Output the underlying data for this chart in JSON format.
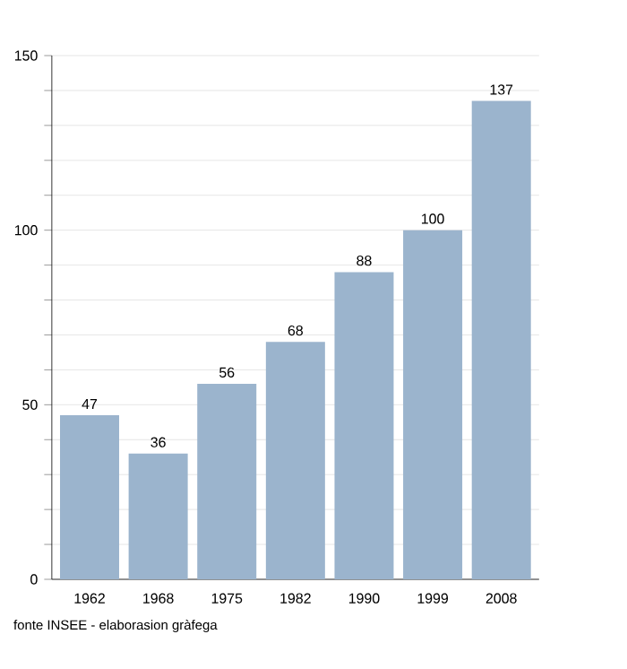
{
  "chart_data": {
    "type": "bar",
    "categories": [
      "1962",
      "1968",
      "1975",
      "1982",
      "1990",
      "1999",
      "2008"
    ],
    "values": [
      47,
      36,
      56,
      68,
      88,
      100,
      137
    ],
    "color": "#9bb4cd",
    "ylim": [
      0,
      150
    ],
    "yticks": [
      0,
      {
        "value": 10,
        "label": null
      },
      {
        "value": 20,
        "label": null
      },
      {
        "value": 30,
        "label": null
      },
      {
        "value": 40,
        "label": null
      },
      50,
      {
        "value": 60,
        "label": null
      },
      {
        "value": 70,
        "label": null
      },
      {
        "value": 80,
        "label": null
      },
      {
        "value": 90,
        "label": null
      },
      100,
      {
        "value": 110,
        "label": null
      },
      {
        "value": 120,
        "label": null
      },
      {
        "value": 130,
        "label": null
      },
      {
        "value": 140,
        "label": null
      },
      150
    ],
    "grid": "y",
    "data_labels": true,
    "annotations": [
      "fonte INSEE - elaborasion gràfega"
    ]
  }
}
